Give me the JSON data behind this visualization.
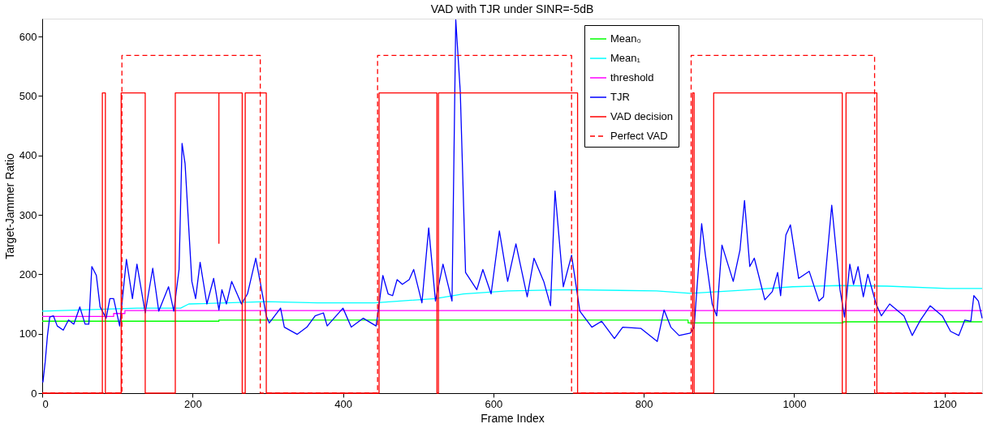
{
  "chart_data": {
    "type": "line",
    "title": "VAD with TJR under SINR=-5dB",
    "xlabel": "Frame Index",
    "ylabel": "Target-Jammer Ratio",
    "xlim": [
      0,
      1250
    ],
    "ylim": [
      0,
      630
    ],
    "xticks": [
      0,
      200,
      400,
      600,
      800,
      1000,
      1200
    ],
    "yticks": [
      0,
      100,
      200,
      300,
      400,
      500,
      600
    ],
    "grid": false,
    "legend": "top",
    "marker": "none",
    "series": [
      {
        "name": "Mean₀",
        "color": "#00ff00",
        "x": [
          0,
          235,
          235,
          859,
          859,
          1065,
          1065,
          1250
        ],
        "values": [
          121,
          121,
          123,
          123,
          118,
          118,
          120,
          120
        ]
      },
      {
        "name": "Mean₁",
        "color": "#00ffff",
        "x": [
          0,
          126,
          184,
          195,
          298,
          366,
          442,
          523,
          560,
          619,
          700,
          817,
          862,
          943,
          998,
          1061,
          1124,
          1204,
          1250
        ],
        "values": [
          138,
          143,
          143,
          150,
          154,
          152,
          152,
          159,
          167,
          172,
          174,
          172,
          168,
          174,
          179,
          181,
          180,
          176,
          176
        ]
      },
      {
        "name": "threshold",
        "color": "#ff00ff",
        "x": [
          0,
          95,
          95,
          110,
          110,
          1250
        ],
        "values": [
          129,
          129,
          134,
          134,
          139,
          139
        ]
      },
      {
        "name": "TJR",
        "color": "#0000ff",
        "x": [
          0,
          1,
          4,
          7,
          10,
          15,
          20,
          28,
          35,
          42,
          50,
          57,
          62,
          66,
          72,
          77,
          85,
          90,
          95,
          103,
          112,
          120,
          126,
          137,
          147,
          155,
          168,
          175,
          182,
          186,
          190,
          199,
          204,
          210,
          219,
          228,
          235,
          239,
          245,
          252,
          265,
          273,
          284,
          291,
          298,
          302,
          317,
          322,
          339,
          352,
          363,
          374,
          379,
          400,
          411,
          427,
          444,
          446,
          453,
          460,
          466,
          472,
          479,
          488,
          494,
          505,
          514,
          523,
          533,
          545,
          550,
          556,
          563,
          578,
          586,
          597,
          608,
          619,
          630,
          645,
          654,
          667,
          676,
          682,
          693,
          704,
          715,
          731,
          744,
          761,
          772,
          796,
          818,
          827,
          836,
          847,
          862,
          867,
          877,
          882,
          891,
          897,
          904,
          919,
          928,
          934,
          941,
          947,
          961,
          971,
          978,
          982,
          989,
          995,
          1006,
          1020,
          1033,
          1039,
          1050,
          1061,
          1067,
          1074,
          1079,
          1085,
          1092,
          1098,
          1109,
          1116,
          1127,
          1146,
          1157,
          1168,
          1181,
          1197,
          1208,
          1219,
          1227,
          1235,
          1239,
          1245,
          1250
        ],
        "values": [
          19,
          19,
          53,
          97,
          128,
          130,
          113,
          106,
          123,
          116,
          145,
          116,
          116,
          213,
          198,
          145,
          126,
          159,
          159,
          113,
          225,
          159,
          217,
          135,
          210,
          138,
          179,
          138,
          208,
          420,
          386,
          188,
          159,
          220,
          150,
          193,
          140,
          174,
          150,
          188,
          150,
          167,
          227,
          179,
          130,
          118,
          143,
          111,
          99,
          111,
          130,
          135,
          113,
          143,
          111,
          126,
          113,
          130,
          198,
          167,
          164,
          191,
          183,
          191,
          208,
          152,
          278,
          155,
          217,
          155,
          628,
          507,
          203,
          174,
          208,
          167,
          273,
          188,
          251,
          162,
          227,
          188,
          147,
          340,
          179,
          232,
          138,
          111,
          121,
          92,
          111,
          109,
          87,
          140,
          111,
          97,
          101,
          111,
          285,
          232,
          150,
          130,
          249,
          188,
          241,
          324,
          213,
          227,
          157,
          171,
          203,
          164,
          266,
          283,
          193,
          205,
          155,
          162,
          316,
          174,
          128,
          217,
          183,
          213,
          162,
          200,
          150,
          130,
          150,
          130,
          97,
          123,
          147,
          130,
          104,
          97,
          123,
          121,
          164,
          155,
          126
        ]
      },
      {
        "name": "VAD decision",
        "color": "#ff0000",
        "x": [
          0,
          80,
          80,
          84,
          84,
          105,
          105,
          137,
          137,
          177,
          177,
          235,
          235,
          235,
          266,
          266,
          270,
          270,
          298,
          298,
          448,
          448,
          525,
          525,
          527,
          527,
          712,
          712,
          865,
          865,
          867,
          867,
          893,
          893,
          1064,
          1064,
          1069,
          1069,
          1110,
          1110,
          1250
        ],
        "values": [
          0,
          0,
          505,
          505,
          0,
          0,
          505,
          505,
          0,
          0,
          505,
          505,
          252,
          505,
          505,
          0,
          0,
          505,
          505,
          0,
          0,
          505,
          505,
          0,
          0,
          505,
          505,
          0,
          0,
          505,
          505,
          0,
          0,
          505,
          505,
          0,
          0,
          505,
          505,
          0,
          0
        ]
      },
      {
        "name": "Perfect VAD",
        "color": "#ff0000",
        "line_style": "dashed",
        "x": [
          0,
          106,
          106,
          290,
          290,
          446,
          446,
          704,
          704,
          863,
          863,
          1107,
          1107,
          1250
        ],
        "values": [
          0,
          0,
          568,
          568,
          0,
          0,
          568,
          568,
          0,
          0,
          568,
          568,
          0,
          0
        ]
      }
    ]
  }
}
